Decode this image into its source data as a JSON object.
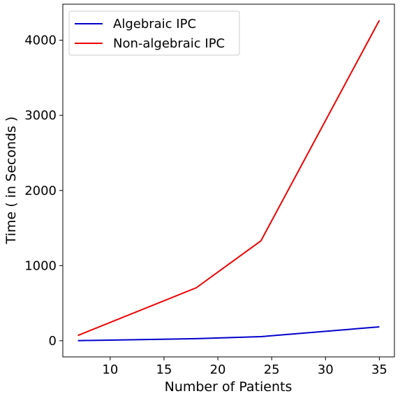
{
  "chart_data": {
    "type": "line",
    "title": "",
    "xlabel": "Number of Patients",
    "ylabel": "Time ( in Seconds )",
    "xlim": [
      5.6,
      36.4
    ],
    "ylim": [
      -215,
      4480
    ],
    "xticks": [
      10,
      15,
      20,
      25,
      30,
      35
    ],
    "yticks": [
      0,
      1000,
      2000,
      3000,
      4000
    ],
    "grid": false,
    "legend_position": "upper-left",
    "series": [
      {
        "name": "Algebraic IPC",
        "color": "#0000cc",
        "x": [
          7,
          18,
          24,
          35
        ],
        "y": [
          2,
          28,
          55,
          185
        ]
      },
      {
        "name": "Non-algebraic IPC",
        "color": "#ee0000",
        "x": [
          7,
          18,
          24,
          35
        ],
        "y": [
          70,
          705,
          1330,
          4265
        ]
      }
    ]
  }
}
